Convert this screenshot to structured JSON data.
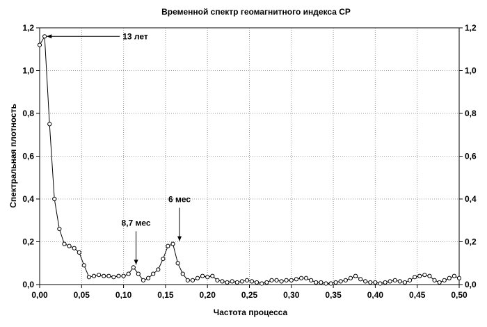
{
  "chart_data": {
    "type": "line",
    "title": "Временной спектр геомагнитного индекса СР",
    "xlabel": "Частота процесса",
    "ylabel": "Спектральная плотность",
    "xlim": [
      0.0,
      0.5
    ],
    "ylim": [
      0.0,
      1.2
    ],
    "grid": true,
    "x_ticks": [
      "0,00",
      "0,05",
      "0,10",
      "0,15",
      "0,20",
      "0,25",
      "0,30",
      "0,35",
      "0,40",
      "0,45",
      "0,50"
    ],
    "y_ticks": [
      "0,0",
      "0,2",
      "0,4",
      "0,6",
      "0,8",
      "1,0",
      "1,2"
    ],
    "series": [
      {
        "x": [
          0.0,
          0.0059,
          0.0118,
          0.0176,
          0.0235,
          0.0294,
          0.0353,
          0.0412,
          0.0471,
          0.0529,
          0.0588,
          0.0647,
          0.0706,
          0.0765,
          0.0824,
          0.0882,
          0.0941,
          0.1,
          0.1059,
          0.1118,
          0.1176,
          0.1235,
          0.1294,
          0.1353,
          0.1412,
          0.1471,
          0.1529,
          0.1588,
          0.1647,
          0.1706,
          0.1765,
          0.1824,
          0.1882,
          0.1941,
          0.2,
          0.2059,
          0.2118,
          0.2176,
          0.2235,
          0.2294,
          0.2353,
          0.2412,
          0.2471,
          0.2529,
          0.2588,
          0.2647,
          0.2706,
          0.2765,
          0.2824,
          0.2882,
          0.2941,
          0.3,
          0.3059,
          0.3118,
          0.3176,
          0.3235,
          0.3294,
          0.3353,
          0.3412,
          0.3471,
          0.3529,
          0.3588,
          0.3647,
          0.3706,
          0.3765,
          0.3824,
          0.3882,
          0.3941,
          0.4,
          0.4059,
          0.4118,
          0.4176,
          0.4235,
          0.4294,
          0.4353,
          0.4412,
          0.4471,
          0.4529,
          0.4588,
          0.4647,
          0.4706,
          0.4765,
          0.4824,
          0.4882,
          0.4941,
          0.5
        ],
        "y": [
          1.12,
          1.16,
          0.75,
          0.4,
          0.26,
          0.19,
          0.18,
          0.17,
          0.15,
          0.09,
          0.035,
          0.04,
          0.045,
          0.04,
          0.04,
          0.035,
          0.04,
          0.04,
          0.05,
          0.08,
          0.05,
          0.02,
          0.03,
          0.05,
          0.07,
          0.12,
          0.18,
          0.19,
          0.1,
          0.05,
          0.02,
          0.02,
          0.03,
          0.04,
          0.035,
          0.04,
          0.02,
          0.015,
          0.01,
          0.015,
          0.01,
          0.015,
          0.02,
          0.015,
          0.01,
          0.005,
          0.01,
          0.02,
          0.02,
          0.015,
          0.02,
          0.02,
          0.025,
          0.03,
          0.03,
          0.02,
          0.01,
          0.01,
          0.005,
          0.005,
          0.01,
          0.015,
          0.02,
          0.03,
          0.04,
          0.025,
          0.015,
          0.01,
          0.01,
          0.005,
          0.01,
          0.015,
          0.02,
          0.015,
          0.01,
          0.02,
          0.035,
          0.04,
          0.045,
          0.04,
          0.02,
          0.01,
          0.02,
          0.03,
          0.04,
          0.03
        ]
      }
    ],
    "annotations": [
      {
        "text": "13 лет",
        "x": 0.006,
        "y": 1.16,
        "style": "horizontal"
      },
      {
        "text": "8,7 мес",
        "x": 0.1149,
        "y": 0.08,
        "style": "vertical"
      },
      {
        "text": "6 мес",
        "x": 0.1667,
        "y": 0.19,
        "style": "vertical"
      }
    ]
  }
}
